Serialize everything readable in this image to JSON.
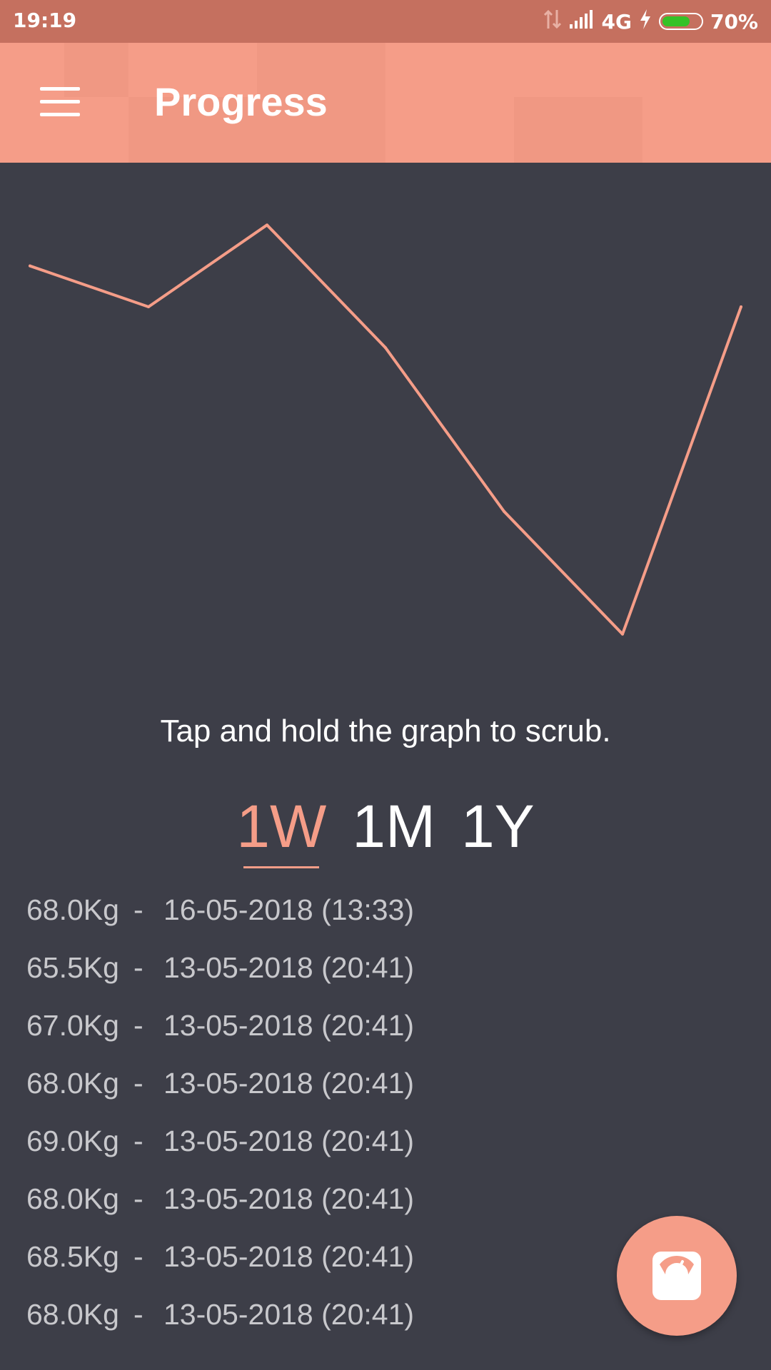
{
  "status_bar": {
    "time": "19:19",
    "network": "4G",
    "battery_percent": "70%",
    "battery_level": 0.7,
    "icons": [
      "data-transfer-icon",
      "signal-icon",
      "charging-icon",
      "battery-icon"
    ]
  },
  "app_bar": {
    "title": "Progress",
    "menu_icon": "hamburger-menu-icon",
    "color": "#f59d88"
  },
  "chart_data": {
    "type": "line",
    "x": [
      1,
      2,
      3,
      4,
      5,
      6,
      7
    ],
    "values": [
      67.0,
      66.5,
      67.5,
      66.0,
      64.0,
      62.5,
      66.5
    ],
    "ylim": [
      62.0,
      68.0
    ],
    "grid": false,
    "legend": "none",
    "title": "",
    "xlabel": "",
    "ylabel": "",
    "line_color": "#f59d88"
  },
  "hint": "Tap and hold the graph to scrub.",
  "ranges": [
    {
      "label": "1W",
      "active": true
    },
    {
      "label": "1M",
      "active": false
    },
    {
      "label": "1Y",
      "active": false
    }
  ],
  "entries": [
    {
      "weight": "68.0Kg",
      "date": "16-05-2018 (13:33)"
    },
    {
      "weight": "65.5Kg",
      "date": "13-05-2018 (20:41)"
    },
    {
      "weight": "67.0Kg",
      "date": "13-05-2018 (20:41)"
    },
    {
      "weight": "68.0Kg",
      "date": "13-05-2018 (20:41)"
    },
    {
      "weight": "69.0Kg",
      "date": "13-05-2018 (20:41)"
    },
    {
      "weight": "68.0Kg",
      "date": "13-05-2018 (20:41)"
    },
    {
      "weight": "68.5Kg",
      "date": "13-05-2018 (20:41)"
    },
    {
      "weight": "68.0Kg",
      "date": "13-05-2018 (20:41)"
    }
  ],
  "separator": "-",
  "fab": {
    "icon": "scale-icon",
    "color": "#f59d88"
  }
}
